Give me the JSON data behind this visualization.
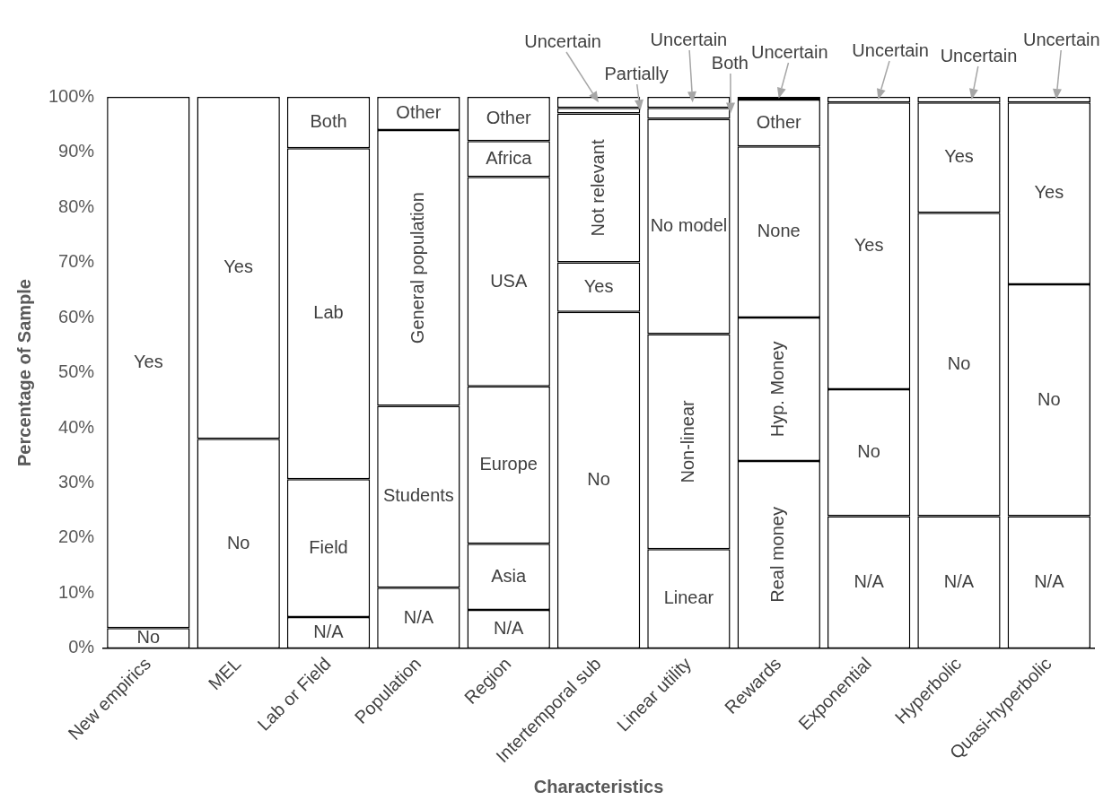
{
  "chart_data": {
    "type": "bar",
    "stacked": true,
    "xlabel": "Characteristics",
    "ylabel": "Percentage of Sample",
    "legend": false,
    "grid": false,
    "categories": [
      "New empirics",
      "MEL",
      "Lab or Field",
      "Population",
      "Region",
      "Intertemporal sub",
      "Linear utility",
      "Rewards",
      "Exponential",
      "Hyperbolic",
      "Quasi-hyperbolic"
    ],
    "ylim": [
      0,
      100
    ],
    "yticks": [
      {
        "value": 0,
        "label": "0%"
      },
      {
        "value": 10,
        "label": "10%"
      },
      {
        "value": 20,
        "label": "20%"
      },
      {
        "value": 30,
        "label": "30%"
      },
      {
        "value": 40,
        "label": "40%"
      },
      {
        "value": 50,
        "label": "50%"
      },
      {
        "value": 60,
        "label": "60%"
      },
      {
        "value": 70,
        "label": "70%"
      },
      {
        "value": 80,
        "label": "80%"
      },
      {
        "value": 90,
        "label": "90%"
      },
      {
        "value": 100,
        "label": "100%"
      }
    ],
    "series": [
      {
        "color": "#ffffff",
        "values": [
          3.7,
          38,
          5.7,
          11,
          7,
          61,
          18,
          34,
          24,
          24,
          24
        ],
        "value_labels": [
          "No",
          "No",
          "N/A",
          "N/A",
          "N/A",
          "No",
          "Linear",
          "Real money",
          "N/A",
          "N/A",
          "N/A"
        ]
      },
      {
        "color": "#ffffff",
        "values": [
          96.3,
          62,
          25,
          33,
          12,
          9,
          39,
          26,
          23,
          55,
          42
        ],
        "value_labels": [
          "Yes",
          "Yes",
          "Field",
          "Students",
          "Asia",
          "Yes",
          "Non-linear",
          "Hyp. Money",
          "No",
          "No",
          "No"
        ]
      },
      {
        "color": "#ffffff",
        "values": [
          null,
          null,
          60,
          50,
          28.5,
          27,
          39,
          31,
          52,
          20,
          33
        ],
        "value_labels": [
          null,
          null,
          "Lab",
          "General population",
          "Europe",
          "Not relevant",
          "No model",
          "None",
          "Yes",
          "Yes",
          "Yes"
        ]
      },
      {
        "color": "#ffffff",
        "values": [
          null,
          null,
          9.3,
          6,
          38,
          1,
          2,
          8.5,
          1,
          1,
          1
        ],
        "value_labels": [
          null,
          null,
          "Both",
          "Other",
          "USA",
          null,
          null,
          "Other",
          null,
          null,
          null
        ]
      },
      {
        "color": "#ffffff",
        "values": [
          null,
          null,
          null,
          null,
          6.5,
          2,
          2,
          0.5,
          null,
          null,
          null
        ],
        "value_labels": [
          null,
          null,
          null,
          null,
          "Africa",
          null,
          null,
          null,
          null,
          null,
          null
        ]
      },
      {
        "color": "#ffffff",
        "values": [
          null,
          null,
          null,
          null,
          8,
          null,
          null,
          null,
          null,
          null,
          null
        ],
        "value_labels": [
          null,
          null,
          null,
          null,
          "Other",
          null,
          null,
          null,
          null,
          null,
          null
        ]
      }
    ],
    "annotations": [
      {
        "text": "Uncertain",
        "x": "Intertemporal sub",
        "y": 99
      },
      {
        "text": "Partially",
        "x": "Intertemporal sub",
        "y": 97.5
      },
      {
        "text": "Uncertain",
        "x": "Linear utility",
        "y": 99
      },
      {
        "text": "Both",
        "x": "Linear utility",
        "y": 97
      },
      {
        "text": "Uncertain",
        "x": "Rewards",
        "y": 99.7
      },
      {
        "text": "Uncertain",
        "x": "Exponential",
        "y": 99.5
      },
      {
        "text": "Uncertain",
        "x": "Hyperbolic",
        "y": 99.5
      },
      {
        "text": "Uncertain",
        "x": "Quasi-hyperbolic",
        "y": 99.5
      }
    ]
  }
}
